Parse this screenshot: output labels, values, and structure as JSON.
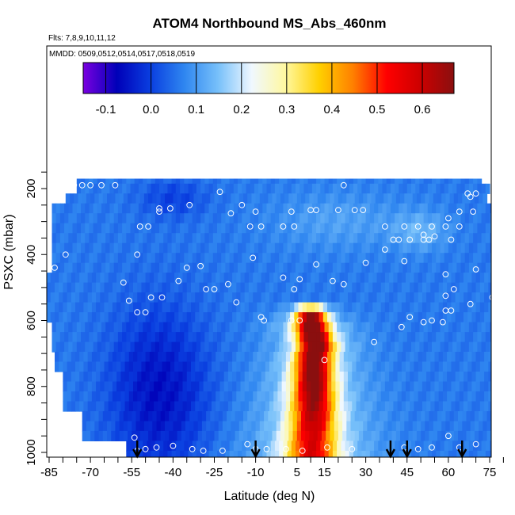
{
  "chart_data": {
    "type": "heatmap",
    "title": "ATOM4 Northbound MS_Abs_460nm",
    "annotations": [
      "Flts: 7,8,9,10,11,12",
      "MMDD: 0509,0512,0514,0517,0518,0519"
    ],
    "xlabel": "Latitude (deg N)",
    "ylabel": "PSXC (mbar)",
    "xlim": [
      -87,
      82
    ],
    "ylim": [
      1010,
      130
    ],
    "x_ticks": [
      -85,
      -70,
      -55,
      -40,
      -25,
      -10,
      5,
      15,
      30,
      45,
      60,
      75
    ],
    "y_ticks": [
      200,
      400,
      600,
      800,
      1000
    ],
    "colorbar": {
      "ticks": [
        -0.1,
        0.0,
        0.1,
        0.2,
        0.3,
        0.4,
        0.5,
        0.6
      ],
      "tick_labels": [
        "-0.1",
        "0.0",
        "0.1",
        "0.2",
        "0.3",
        "0.4",
        "0.5",
        "0.6"
      ],
      "range": [
        -0.15,
        0.67
      ],
      "colors": [
        "#7a00e0",
        "#0000b8",
        "#0a3fe0",
        "#2f86f0",
        "#77c0fa",
        "#f0f8ff",
        "#fff8a0",
        "#ffd000",
        "#ff8000",
        "#ff0000",
        "#cc0000",
        "#8a0f0f"
      ]
    },
    "arrow_latitudes": [
      -53,
      -10,
      39,
      45,
      65
    ],
    "plume": [
      {
        "p": 580,
        "center": 10,
        "peak": 0.62
      },
      {
        "p": 620,
        "center": 10.5,
        "peak": 0.64
      },
      {
        "p": 680,
        "center": 12,
        "peak": 0.63
      },
      {
        "p": 720,
        "center": 11,
        "peak": 0.6
      },
      {
        "p": 780,
        "center": 11,
        "peak": 0.58
      },
      {
        "p": 840,
        "center": 11,
        "peak": 0.55
      },
      {
        "p": 900,
        "center": 11,
        "peak": 0.5
      },
      {
        "p": 960,
        "center": 10.5,
        "peak": 0.46
      }
    ],
    "sample_points": [
      {
        "x": -76,
        "y": 190
      },
      {
        "x": -73,
        "y": 190
      },
      {
        "x": -70,
        "y": 190
      },
      {
        "x": -66,
        "y": 190
      },
      {
        "x": -61,
        "y": 190
      },
      {
        "x": -79,
        "y": 205
      },
      {
        "x": -77,
        "y": 205
      },
      {
        "x": -86,
        "y": 215
      },
      {
        "x": -84,
        "y": 215
      },
      {
        "x": -23,
        "y": 210
      },
      {
        "x": 22,
        "y": 190
      },
      {
        "x": 67,
        "y": 215
      },
      {
        "x": 70,
        "y": 215
      },
      {
        "x": 68,
        "y": 225
      },
      {
        "x": -45,
        "y": 260
      },
      {
        "x": -41,
        "y": 260
      },
      {
        "x": -34,
        "y": 250
      },
      {
        "x": -45,
        "y": 270
      },
      {
        "x": -19,
        "y": 275
      },
      {
        "x": -15,
        "y": 250
      },
      {
        "x": -10,
        "y": 270
      },
      {
        "x": 3,
        "y": 270
      },
      {
        "x": 10,
        "y": 265
      },
      {
        "x": 12,
        "y": 265
      },
      {
        "x": 20,
        "y": 265
      },
      {
        "x": 26,
        "y": 265
      },
      {
        "x": 29,
        "y": 265
      },
      {
        "x": 64,
        "y": 270
      },
      {
        "x": 69,
        "y": 270
      },
      {
        "x": 77,
        "y": 270
      },
      {
        "x": 80,
        "y": 270
      },
      {
        "x": 60,
        "y": 290
      },
      {
        "x": -52,
        "y": 315
      },
      {
        "x": -49,
        "y": 315
      },
      {
        "x": -12,
        "y": 315
      },
      {
        "x": -8,
        "y": 315
      },
      {
        "x": 0,
        "y": 315
      },
      {
        "x": 4,
        "y": 315
      },
      {
        "x": 37,
        "y": 315
      },
      {
        "x": 44,
        "y": 315
      },
      {
        "x": 49,
        "y": 315
      },
      {
        "x": 54,
        "y": 315
      },
      {
        "x": 59,
        "y": 315
      },
      {
        "x": 64,
        "y": 315
      },
      {
        "x": 51,
        "y": 340
      },
      {
        "x": 55,
        "y": 345
      },
      {
        "x": 40,
        "y": 355
      },
      {
        "x": 42,
        "y": 355
      },
      {
        "x": 46,
        "y": 355
      },
      {
        "x": 51,
        "y": 355
      },
      {
        "x": 53,
        "y": 355
      },
      {
        "x": 61,
        "y": 355
      },
      {
        "x": -87,
        "y": 370
      },
      {
        "x": 37,
        "y": 385
      },
      {
        "x": 79,
        "y": 380
      },
      {
        "x": -79,
        "y": 400
      },
      {
        "x": -53,
        "y": 400
      },
      {
        "x": -11,
        "y": 410
      },
      {
        "x": 44,
        "y": 420
      },
      {
        "x": 30,
        "y": 425
      },
      {
        "x": -83,
        "y": 440
      },
      {
        "x": -35,
        "y": 440
      },
      {
        "x": -30,
        "y": 435
      },
      {
        "x": 12,
        "y": 430
      },
      {
        "x": 70,
        "y": 445
      },
      {
        "x": 59,
        "y": 460
      },
      {
        "x": -38,
        "y": 480
      },
      {
        "x": -58,
        "y": 485
      },
      {
        "x": 0,
        "y": 470
      },
      {
        "x": 6,
        "y": 475
      },
      {
        "x": 18,
        "y": 480
      },
      {
        "x": 22,
        "y": 490
      },
      {
        "x": -20,
        "y": 490
      },
      {
        "x": -25,
        "y": 505
      },
      {
        "x": -28,
        "y": 505
      },
      {
        "x": 4,
        "y": 505
      },
      {
        "x": 62,
        "y": 505
      },
      {
        "x": 59,
        "y": 525
      },
      {
        "x": -48,
        "y": 530
      },
      {
        "x": -44,
        "y": 530
      },
      {
        "x": -56,
        "y": 540
      },
      {
        "x": -17,
        "y": 545
      },
      {
        "x": 68,
        "y": 550
      },
      {
        "x": 81,
        "y": 550
      },
      {
        "x": 76,
        "y": 530
      },
      {
        "x": -53,
        "y": 575
      },
      {
        "x": -50,
        "y": 575
      },
      {
        "x": 59,
        "y": 570
      },
      {
        "x": 61,
        "y": 570
      },
      {
        "x": 46,
        "y": 590
      },
      {
        "x": -8,
        "y": 590
      },
      {
        "x": -7,
        "y": 600
      },
      {
        "x": 3,
        "y": 600
      },
      {
        "x": 6,
        "y": 600
      },
      {
        "x": 54,
        "y": 600
      },
      {
        "x": 58,
        "y": 605
      },
      {
        "x": -87,
        "y": 615
      },
      {
        "x": 43,
        "y": 620
      },
      {
        "x": 51,
        "y": 605
      },
      {
        "x": 33,
        "y": 665
      },
      {
        "x": 15,
        "y": 720
      },
      {
        "x": -82,
        "y": 810
      },
      {
        "x": -54,
        "y": 955
      },
      {
        "x": 60,
        "y": 950
      },
      {
        "x": -53,
        "y": 995
      },
      {
        "x": -50,
        "y": 990
      },
      {
        "x": -46,
        "y": 985
      },
      {
        "x": -40,
        "y": 980
      },
      {
        "x": -33,
        "y": 990
      },
      {
        "x": -29,
        "y": 995
      },
      {
        "x": -22,
        "y": 995
      },
      {
        "x": -13,
        "y": 975
      },
      {
        "x": -10,
        "y": 990
      },
      {
        "x": -6,
        "y": 990
      },
      {
        "x": 1,
        "y": 990
      },
      {
        "x": 7,
        "y": 995
      },
      {
        "x": 16,
        "y": 985
      },
      {
        "x": 25,
        "y": 990
      },
      {
        "x": 44,
        "y": 985
      },
      {
        "x": 49,
        "y": 990
      },
      {
        "x": 54,
        "y": 985
      },
      {
        "x": 64,
        "y": 985
      },
      {
        "x": 70,
        "y": 975
      },
      {
        "x": 78,
        "y": 990
      }
    ]
  }
}
